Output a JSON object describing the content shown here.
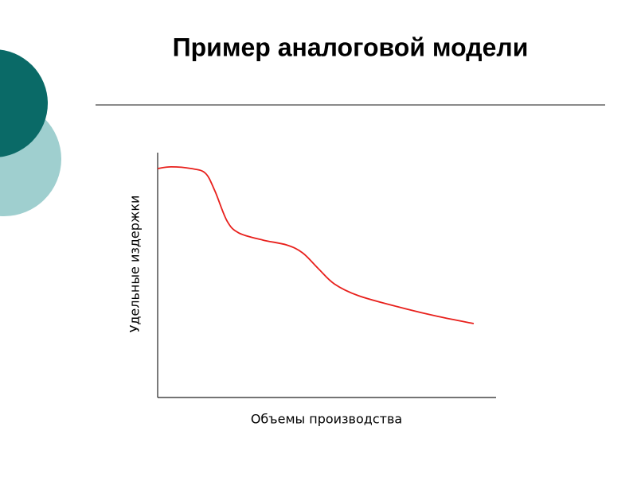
{
  "chart_data": {
    "type": "line",
    "title": "Пример аналоговой модели",
    "x_label": "Объемы производства",
    "y_label": "Удельные издержки",
    "x": [
      0,
      4,
      9.9,
      14.1,
      16.9,
      20.5,
      24,
      31.1,
      38.1,
      42.8,
      47.5,
      52.2,
      59.3,
      71.1,
      82.8,
      93.4
    ],
    "series": [
      {
        "color": "#e8201c",
        "values": [
          93.5,
          94.2,
          93.5,
          91.6,
          84.4,
          72.1,
          67.2,
          64.3,
          62.3,
          59.1,
          52.6,
          46.4,
          41.6,
          37,
          33.1,
          30.2
        ]
      }
    ],
    "xlim": [
      0,
      100
    ],
    "ylim": [
      0,
      100
    ]
  }
}
